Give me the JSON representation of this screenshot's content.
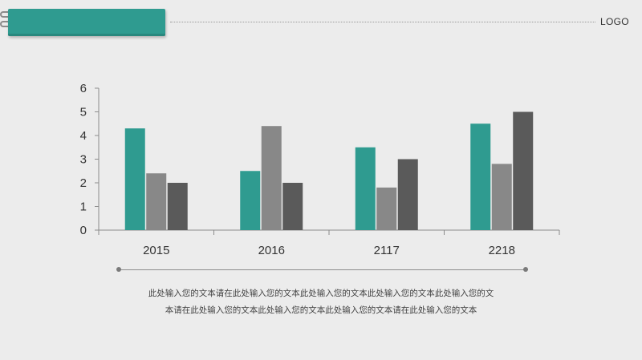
{
  "header": {
    "logo": "LOGO"
  },
  "chart_data": {
    "type": "bar",
    "categories": [
      "2015",
      "2016",
      "2117",
      "2218"
    ],
    "series": [
      {
        "values": [
          4.3,
          2.5,
          3.5,
          4.5
        ]
      },
      {
        "values": [
          2.4,
          4.4,
          1.8,
          2.8
        ]
      },
      {
        "values": [
          2.0,
          2.0,
          3.0,
          5.0
        ]
      }
    ],
    "colors": [
      "#2f9b90",
      "#888888",
      "#5a5a5a"
    ],
    "yticks": [
      "0",
      "1",
      "2",
      "3",
      "4",
      "5",
      "6"
    ],
    "ylim": [
      0,
      6
    ],
    "grid": false,
    "title": "",
    "xlabel": "",
    "ylabel": ""
  },
  "caption": {
    "line1": "此处输入您的文本请在此处输入您的文本此处输入您的文本此处输入您的文本此处输入您的文",
    "line2": "本请在此处输入您的文本此处输入您的文本此处输入您的文本请在此处输入您的文本"
  }
}
